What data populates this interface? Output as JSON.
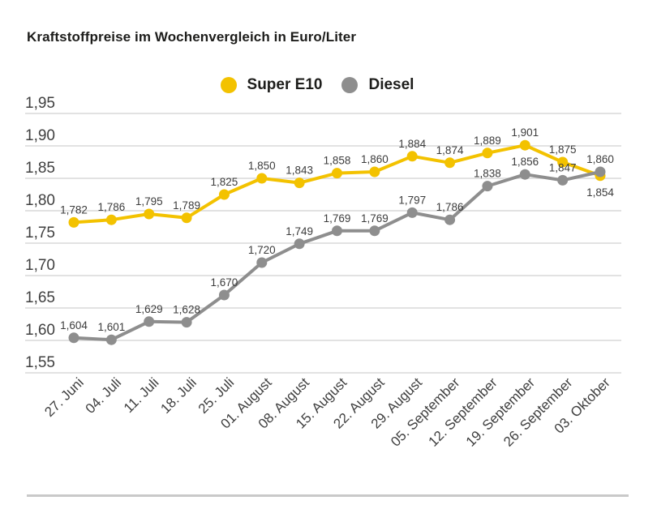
{
  "title": "Kraftstoffpreise im Wochenvergleich in Euro/Liter",
  "colors": {
    "super_e10": "#f3c200",
    "diesel": "#8e8e8e",
    "gridline": "#d8d8d8",
    "divider": "#c9c9c9",
    "text_dark": "#1d1d1b",
    "text_gray": "#3f3f3f"
  },
  "chart_data": {
    "type": "line",
    "title": "Kraftstoffpreise im Wochenvergleich in Euro/Liter",
    "categories": [
      "27. Juni",
      "04. Juli",
      "11. Juli",
      "18. Juli",
      "25. Juli",
      "01. August",
      "08. August",
      "15. August",
      "22. August",
      "29. August",
      "05. September",
      "12. September",
      "19. September",
      "26. September",
      "03. Oktober"
    ],
    "series": [
      {
        "name": "Super E10",
        "color": "#f3c200",
        "values": [
          1.782,
          1.786,
          1.795,
          1.789,
          1.825,
          1.85,
          1.843,
          1.858,
          1.86,
          1.884,
          1.874,
          1.889,
          1.901,
          1.875,
          1.854
        ],
        "point_labels": [
          "1,782",
          "1,786",
          "1,795",
          "1,789",
          "1,825",
          "1,850",
          "1,843",
          "1,858",
          "1,860",
          "1,884",
          "1,874",
          "1,889",
          "1,901",
          "1,875",
          "1,854"
        ],
        "label_below_indices": [
          14
        ]
      },
      {
        "name": "Diesel",
        "color": "#8e8e8e",
        "values": [
          1.604,
          1.601,
          1.629,
          1.628,
          1.67,
          1.72,
          1.749,
          1.769,
          1.769,
          1.797,
          1.786,
          1.838,
          1.856,
          1.847,
          1.86
        ],
        "point_labels": [
          "1,604",
          "1,601",
          "1,629",
          "1,628",
          "1,670",
          "1,720",
          "1,749",
          "1,769",
          "1,769",
          "1,797",
          "1,786",
          "1,838",
          "1,856",
          "1,847",
          "1,860"
        ],
        "label_below_indices": []
      }
    ],
    "ylim": [
      1.55,
      1.95
    ],
    "ytick_step": 0.05,
    "ytick_labels": [
      "1,95",
      "1,90",
      "1,85",
      "1,80",
      "1,75",
      "1,70",
      "1,65",
      "1,60",
      "1,55"
    ],
    "decimal_separator": ",",
    "grid": true,
    "legend_position": "top-center",
    "xlabel": "",
    "ylabel": ""
  }
}
